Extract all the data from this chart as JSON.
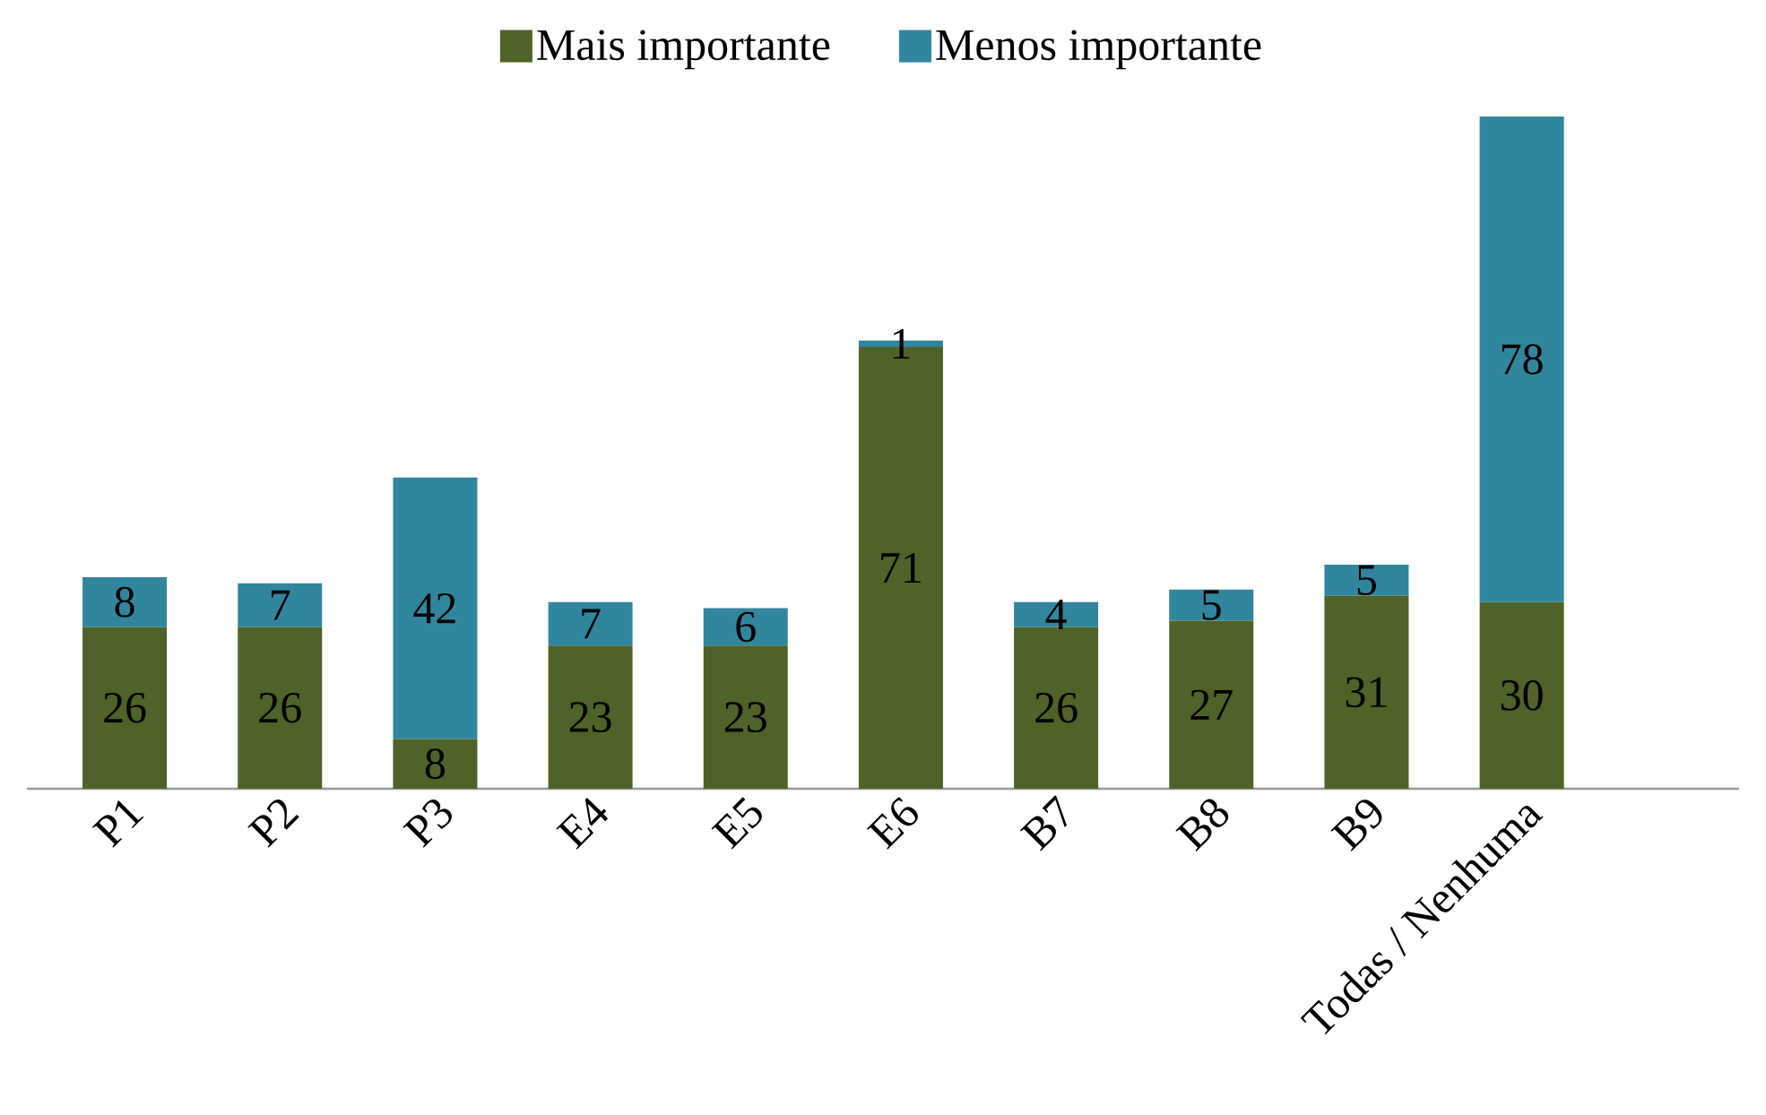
{
  "chart_data": {
    "type": "bar",
    "stacked": true,
    "categories": [
      "P1",
      "P2",
      "P3",
      "E4",
      "E5",
      "E6",
      "B7",
      "B8",
      "B9",
      "Todas / Nenhuma"
    ],
    "series": [
      {
        "name": "Mais importante",
        "color": "#4f6228",
        "values": [
          26,
          26,
          8,
          23,
          23,
          71,
          26,
          27,
          31,
          30
        ]
      },
      {
        "name": "Menos importante",
        "color": "#31869e",
        "values": [
          8,
          7,
          42,
          7,
          6,
          1,
          4,
          5,
          5,
          78
        ]
      }
    ],
    "tick_labels": "x",
    "data_labels": true,
    "legend": "top"
  }
}
